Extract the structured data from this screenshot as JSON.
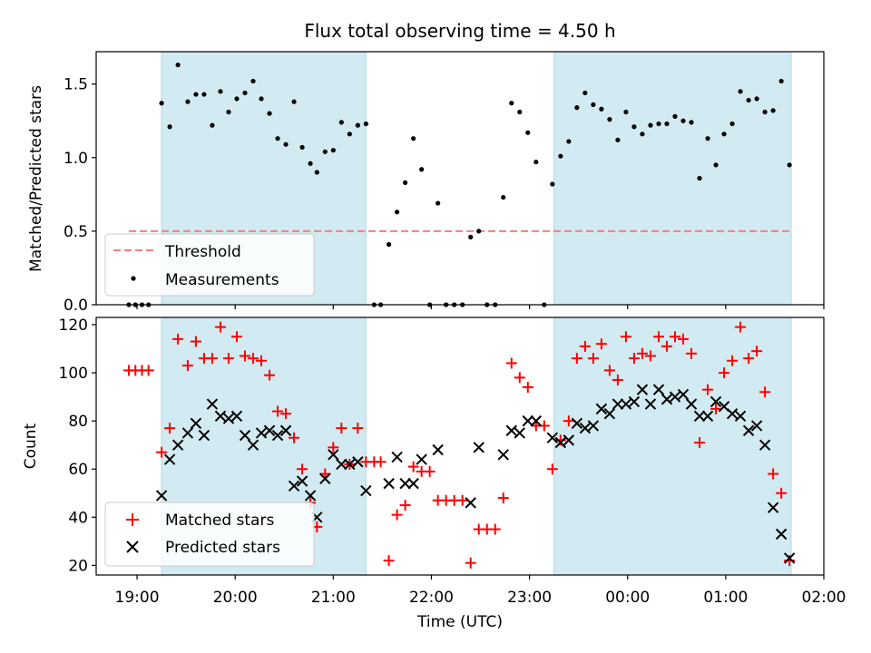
{
  "chart_data": [
    {
      "type": "scatter",
      "title": "Flux total observing time = 4.50 h",
      "ylabel": "Matched/Predicted stars",
      "xlabel": "",
      "xlim": [
        "18:35",
        "02:00"
      ],
      "ylim": [
        0,
        1.72
      ],
      "x_ticks": [
        "19:00",
        "20:00",
        "21:00",
        "22:00",
        "23:00",
        "00:00",
        "01:00",
        "02:00"
      ],
      "y_ticks": [
        "0.0",
        "0.5",
        "1.0",
        "1.5"
      ],
      "shaded_intervals": [
        [
          "19:15",
          "21:20"
        ],
        [
          "23:15",
          "01:40"
        ]
      ],
      "threshold": {
        "value": 0.5,
        "x_start": "18:55",
        "x_end": "01:40",
        "color": "#f08080"
      },
      "legend": {
        "position": "lower-left",
        "entries": [
          "Threshold",
          "Measurements"
        ]
      },
      "series": [
        {
          "name": "Measurements",
          "color": "#000000",
          "points": [
            [
              "18:55",
              0
            ],
            [
              "18:59",
              0
            ],
            [
              "19:03",
              0
            ],
            [
              "19:07",
              0
            ],
            [
              "19:15",
              1.37
            ],
            [
              "19:20",
              1.21
            ],
            [
              "19:25",
              1.63
            ],
            [
              "19:31",
              1.38
            ],
            [
              "19:36",
              1.43
            ],
            [
              "19:41",
              1.43
            ],
            [
              "19:46",
              1.22
            ],
            [
              "19:51",
              1.45
            ],
            [
              "19:56",
              1.31
            ],
            [
              "20:01",
              1.4
            ],
            [
              "20:06",
              1.44
            ],
            [
              "20:11",
              1.52
            ],
            [
              "20:16",
              1.4
            ],
            [
              "20:21",
              1.3
            ],
            [
              "20:26",
              1.13
            ],
            [
              "20:31",
              1.09
            ],
            [
              "20:36",
              1.38
            ],
            [
              "20:41",
              1.07
            ],
            [
              "20:46",
              0.96
            ],
            [
              "20:50",
              0.9
            ],
            [
              "20:55",
              1.04
            ],
            [
              "21:00",
              1.05
            ],
            [
              "21:05",
              1.24
            ],
            [
              "21:10",
              1.16
            ],
            [
              "21:15",
              1.22
            ],
            [
              "21:20",
              1.23
            ],
            [
              "21:25",
              0
            ],
            [
              "21:29",
              0
            ],
            [
              "21:34",
              0.41
            ],
            [
              "21:39",
              0.63
            ],
            [
              "21:44",
              0.83
            ],
            [
              "21:49",
              1.13
            ],
            [
              "21:54",
              0.92
            ],
            [
              "21:59",
              0
            ],
            [
              "22:04",
              0.69
            ],
            [
              "22:09",
              0
            ],
            [
              "22:14",
              0
            ],
            [
              "22:19",
              0
            ],
            [
              "22:24",
              0.46
            ],
            [
              "22:29",
              0.5
            ],
            [
              "22:34",
              0
            ],
            [
              "22:39",
              0
            ],
            [
              "22:44",
              0.73
            ],
            [
              "22:49",
              1.37
            ],
            [
              "22:54",
              1.31
            ],
            [
              "22:59",
              1.17
            ],
            [
              "23:04",
              0.97
            ],
            [
              "23:09",
              0
            ],
            [
              "23:14",
              0.82
            ],
            [
              "23:19",
              1.01
            ],
            [
              "23:24",
              1.11
            ],
            [
              "23:29",
              1.34
            ],
            [
              "23:34",
              1.44
            ],
            [
              "23:39",
              1.36
            ],
            [
              "23:44",
              1.33
            ],
            [
              "23:49",
              1.26
            ],
            [
              "23:54",
              1.12
            ],
            [
              "23:59",
              1.31
            ],
            [
              "00:04",
              1.21
            ],
            [
              "00:09",
              1.16
            ],
            [
              "00:14",
              1.22
            ],
            [
              "00:19",
              1.23
            ],
            [
              "00:24",
              1.23
            ],
            [
              "00:29",
              1.28
            ],
            [
              "00:34",
              1.25
            ],
            [
              "00:39",
              1.24
            ],
            [
              "00:44",
              0.86
            ],
            [
              "00:49",
              1.13
            ],
            [
              "00:54",
              0.95
            ],
            [
              "00:59",
              1.16
            ],
            [
              "01:04",
              1.23
            ],
            [
              "01:09",
              1.45
            ],
            [
              "01:14",
              1.39
            ],
            [
              "01:19",
              1.4
            ],
            [
              "01:24",
              1.31
            ],
            [
              "01:29",
              1.32
            ],
            [
              "01:34",
              1.52
            ],
            [
              "01:39",
              0.95
            ]
          ]
        }
      ]
    },
    {
      "type": "scatter",
      "title": "",
      "ylabel": "Count",
      "xlabel": "Time (UTC)",
      "xlim": [
        "18:35",
        "02:00"
      ],
      "ylim": [
        16,
        123
      ],
      "x_ticks": [
        "19:00",
        "20:00",
        "21:00",
        "22:00",
        "23:00",
        "00:00",
        "01:00",
        "02:00"
      ],
      "y_ticks": [
        "20",
        "40",
        "60",
        "80",
        "100",
        "120"
      ],
      "shaded_intervals": [
        [
          "19:15",
          "21:20"
        ],
        [
          "23:15",
          "01:40"
        ]
      ],
      "legend": {
        "position": "lower-left",
        "entries": [
          "Matched stars",
          "Predicted stars"
        ]
      },
      "series": [
        {
          "name": "Matched stars",
          "color": "#ff0000",
          "marker": "+",
          "points": [
            [
              "18:55",
              101
            ],
            [
              "18:59",
              101
            ],
            [
              "19:03",
              101
            ],
            [
              "19:07",
              101
            ],
            [
              "19:15",
              67
            ],
            [
              "19:20",
              77
            ],
            [
              "19:25",
              114
            ],
            [
              "19:31",
              103
            ],
            [
              "19:36",
              113
            ],
            [
              "19:41",
              106
            ],
            [
              "19:46",
              106
            ],
            [
              "19:51",
              119
            ],
            [
              "19:56",
              106
            ],
            [
              "20:01",
              115
            ],
            [
              "20:06",
              107
            ],
            [
              "20:11",
              106
            ],
            [
              "20:16",
              105
            ],
            [
              "20:21",
              99
            ],
            [
              "20:26",
              84
            ],
            [
              "20:31",
              83
            ],
            [
              "20:36",
              73
            ],
            [
              "20:41",
              60
            ],
            [
              "20:46",
              46
            ],
            [
              "20:50",
              36
            ],
            [
              "20:55",
              58
            ],
            [
              "21:00",
              69
            ],
            [
              "21:05",
              77
            ],
            [
              "21:10",
              62
            ],
            [
              "21:15",
              77
            ],
            [
              "21:20",
              63
            ],
            [
              "21:25",
              63
            ],
            [
              "21:29",
              63
            ],
            [
              "21:34",
              22
            ],
            [
              "21:39",
              41
            ],
            [
              "21:44",
              45
            ],
            [
              "21:49",
              61
            ],
            [
              "21:54",
              59
            ],
            [
              "21:59",
              59
            ],
            [
              "22:04",
              47
            ],
            [
              "22:09",
              47
            ],
            [
              "22:14",
              47
            ],
            [
              "22:19",
              47
            ],
            [
              "22:24",
              21
            ],
            [
              "22:29",
              35
            ],
            [
              "22:34",
              35
            ],
            [
              "22:39",
              35
            ],
            [
              "22:44",
              48
            ],
            [
              "22:49",
              104
            ],
            [
              "22:54",
              98
            ],
            [
              "22:59",
              94
            ],
            [
              "23:04",
              78
            ],
            [
              "23:09",
              78
            ],
            [
              "23:14",
              60
            ],
            [
              "23:19",
              72
            ],
            [
              "23:24",
              80
            ],
            [
              "23:29",
              106
            ],
            [
              "23:34",
              111
            ],
            [
              "23:39",
              106
            ],
            [
              "23:44",
              112
            ],
            [
              "23:49",
              101
            ],
            [
              "23:54",
              97
            ],
            [
              "23:59",
              115
            ],
            [
              "00:04",
              106
            ],
            [
              "00:09",
              108
            ],
            [
              "00:14",
              107
            ],
            [
              "00:19",
              115
            ],
            [
              "00:24",
              111
            ],
            [
              "00:29",
              115
            ],
            [
              "00:34",
              114
            ],
            [
              "00:39",
              108
            ],
            [
              "00:44",
              71
            ],
            [
              "00:49",
              93
            ],
            [
              "00:54",
              85
            ],
            [
              "00:59",
              100
            ],
            [
              "01:04",
              105
            ],
            [
              "01:09",
              119
            ],
            [
              "01:14",
              106
            ],
            [
              "01:19",
              109
            ],
            [
              "01:24",
              92
            ],
            [
              "01:29",
              58
            ],
            [
              "01:34",
              50
            ],
            [
              "01:39",
              22
            ]
          ]
        },
        {
          "name": "Predicted stars",
          "color": "#000000",
          "marker": "x",
          "points": [
            [
              "19:15",
              49
            ],
            [
              "19:20",
              64
            ],
            [
              "19:25",
              70
            ],
            [
              "19:31",
              75
            ],
            [
              "19:36",
              79
            ],
            [
              "19:41",
              74
            ],
            [
              "19:46",
              87
            ],
            [
              "19:51",
              82
            ],
            [
              "19:56",
              81
            ],
            [
              "20:01",
              82
            ],
            [
              "20:06",
              74
            ],
            [
              "20:11",
              70
            ],
            [
              "20:16",
              75
            ],
            [
              "20:21",
              76
            ],
            [
              "20:26",
              74
            ],
            [
              "20:31",
              76
            ],
            [
              "20:36",
              53
            ],
            [
              "20:41",
              55
            ],
            [
              "20:46",
              49
            ],
            [
              "20:50",
              40
            ],
            [
              "20:55",
              56
            ],
            [
              "21:00",
              66
            ],
            [
              "21:05",
              62
            ],
            [
              "21:10",
              62
            ],
            [
              "21:15",
              63
            ],
            [
              "21:20",
              51
            ],
            [
              "21:34",
              54
            ],
            [
              "21:39",
              65
            ],
            [
              "21:44",
              54
            ],
            [
              "21:49",
              54
            ],
            [
              "21:54",
              64
            ],
            [
              "22:04",
              68
            ],
            [
              "22:24",
              46
            ],
            [
              "22:29",
              69
            ],
            [
              "22:44",
              66
            ],
            [
              "22:49",
              76
            ],
            [
              "22:54",
              75
            ],
            [
              "22:59",
              80
            ],
            [
              "23:04",
              80
            ],
            [
              "23:14",
              73
            ],
            [
              "23:19",
              71
            ],
            [
              "23:24",
              72
            ],
            [
              "23:29",
              79
            ],
            [
              "23:34",
              77
            ],
            [
              "23:39",
              78
            ],
            [
              "23:44",
              85
            ],
            [
              "23:49",
              83
            ],
            [
              "23:54",
              87
            ],
            [
              "23:59",
              87
            ],
            [
              "00:04",
              88
            ],
            [
              "00:09",
              93
            ],
            [
              "00:14",
              87
            ],
            [
              "00:19",
              93
            ],
            [
              "00:24",
              89
            ],
            [
              "00:29",
              90
            ],
            [
              "00:34",
              91
            ],
            [
              "00:39",
              87
            ],
            [
              "00:44",
              82
            ],
            [
              "00:49",
              82
            ],
            [
              "00:54",
              88
            ],
            [
              "00:59",
              86
            ],
            [
              "01:04",
              83
            ],
            [
              "01:09",
              82
            ],
            [
              "01:14",
              76
            ],
            [
              "01:19",
              78
            ],
            [
              "01:24",
              70
            ],
            [
              "01:29",
              44
            ],
            [
              "01:34",
              33
            ],
            [
              "01:39",
              23
            ]
          ]
        }
      ]
    }
  ]
}
